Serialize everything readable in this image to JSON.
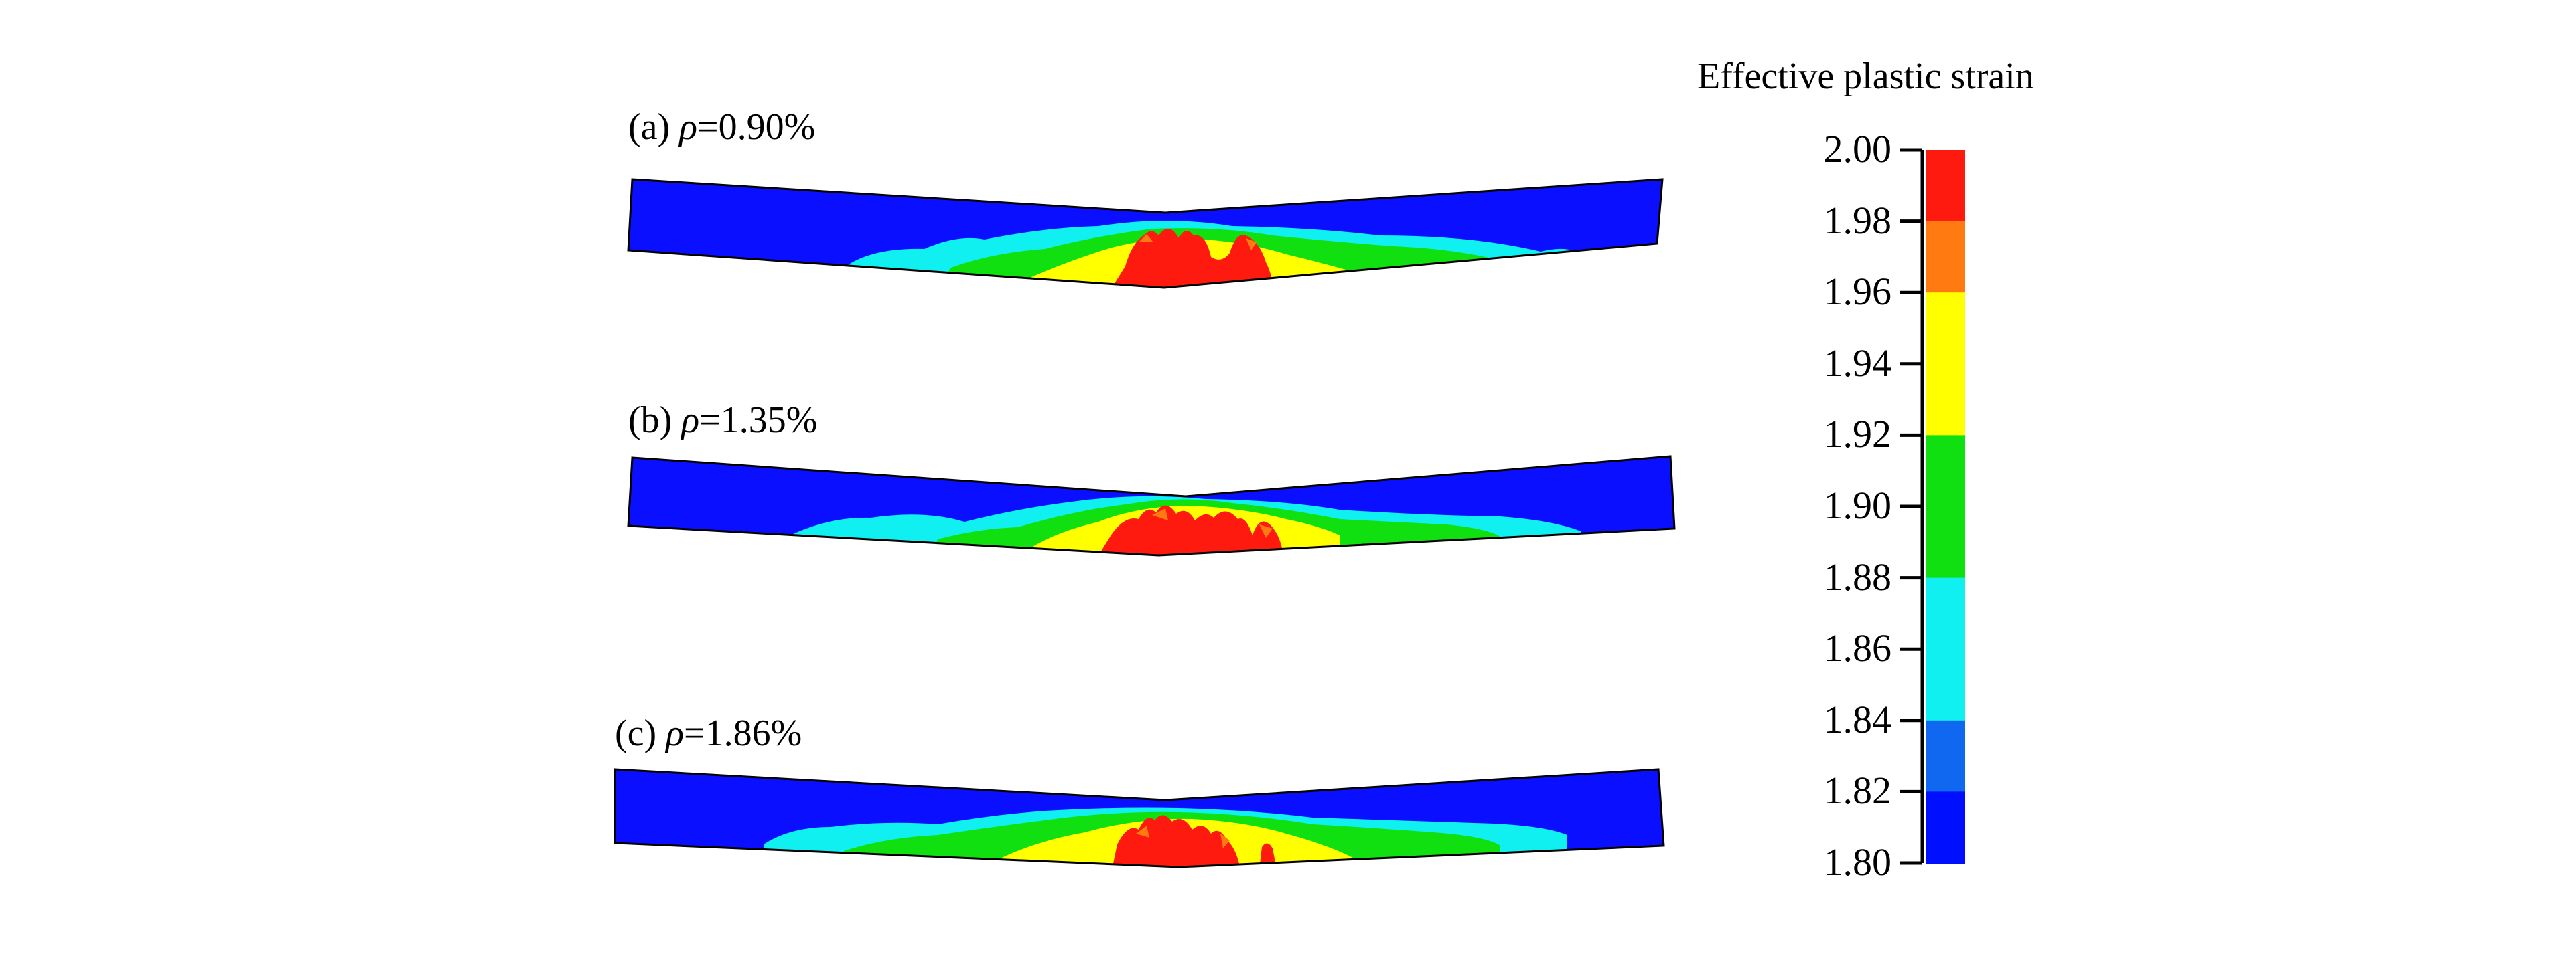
{
  "beams": [
    {
      "label_prefix": "(a)",
      "rho_symbol": "ρ",
      "rho_value": "=0.90%"
    },
    {
      "label_prefix": "(b)",
      "rho_symbol": "ρ",
      "rho_value": "=1.35%"
    },
    {
      "label_prefix": "(c)",
      "rho_symbol": "ρ",
      "rho_value": "=1.86%"
    }
  ],
  "colorbar": {
    "title": "Effective plastic strain",
    "ticks": [
      "2.00",
      "1.98",
      "1.96",
      "1.94",
      "1.92",
      "1.90",
      "1.88",
      "1.86",
      "1.84",
      "1.82",
      "1.80"
    ],
    "bands_top_to_bottom": [
      "#ff1a10",
      "#ff7a10",
      "#ffff00",
      "#ffff00",
      "#10e010",
      "#10e010",
      "#10f0f0",
      "#10f0f0",
      "#1068f0",
      "#0010ff"
    ]
  },
  "colors": {
    "low_strain": "#0a10ff",
    "cyan": "#10f0f0",
    "green": "#10e010",
    "yellow": "#ffff00",
    "orange": "#ff7a10",
    "red": "#ff1a10"
  }
}
